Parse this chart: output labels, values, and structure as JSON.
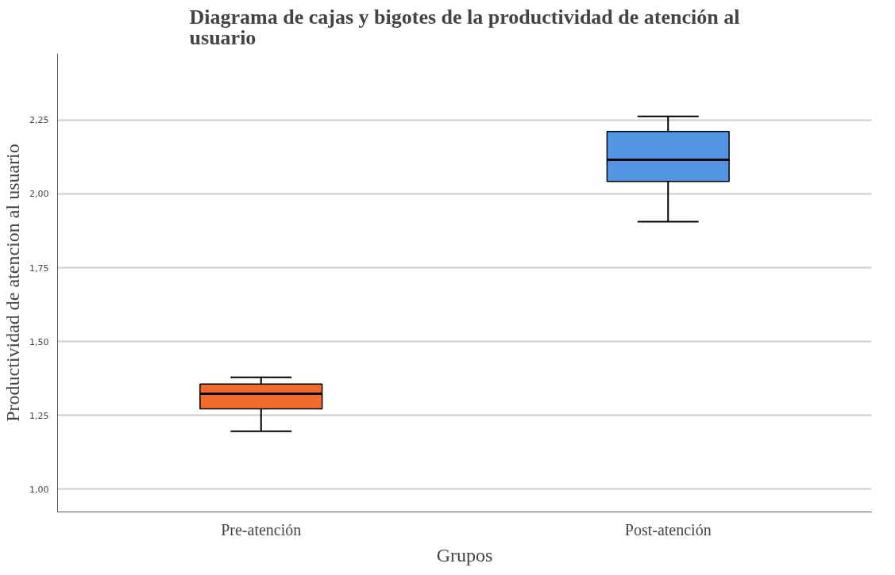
{
  "chart_data": {
    "type": "box",
    "title": "Diagrama de cajas y bigotes de la productividad de atención al usuario",
    "xlabel": "Grupos",
    "ylabel": "Productividad de atencion al usuario",
    "categories": [
      "Pre-atención",
      "Post-atención"
    ],
    "colors": [
      "#f26b2c",
      "#5294e2"
    ],
    "boxes": [
      {
        "low": 1.196,
        "q1": 1.272,
        "median": 1.323,
        "q3": 1.356,
        "high": 1.379
      },
      {
        "low": 1.906,
        "q1": 2.042,
        "median": 2.115,
        "q3": 2.211,
        "high": 2.262
      }
    ],
    "ylim": [
      0.923,
      2.475
    ],
    "yticks": [
      {
        "value": 1.0,
        "label": "1,00"
      },
      {
        "value": 1.25,
        "label": "1,25"
      },
      {
        "value": 1.5,
        "label": "1,50"
      },
      {
        "value": 1.75,
        "label": "1,75"
      },
      {
        "value": 2.0,
        "label": "2,00"
      },
      {
        "value": 2.25,
        "label": "2,25"
      }
    ],
    "grid": "y"
  }
}
